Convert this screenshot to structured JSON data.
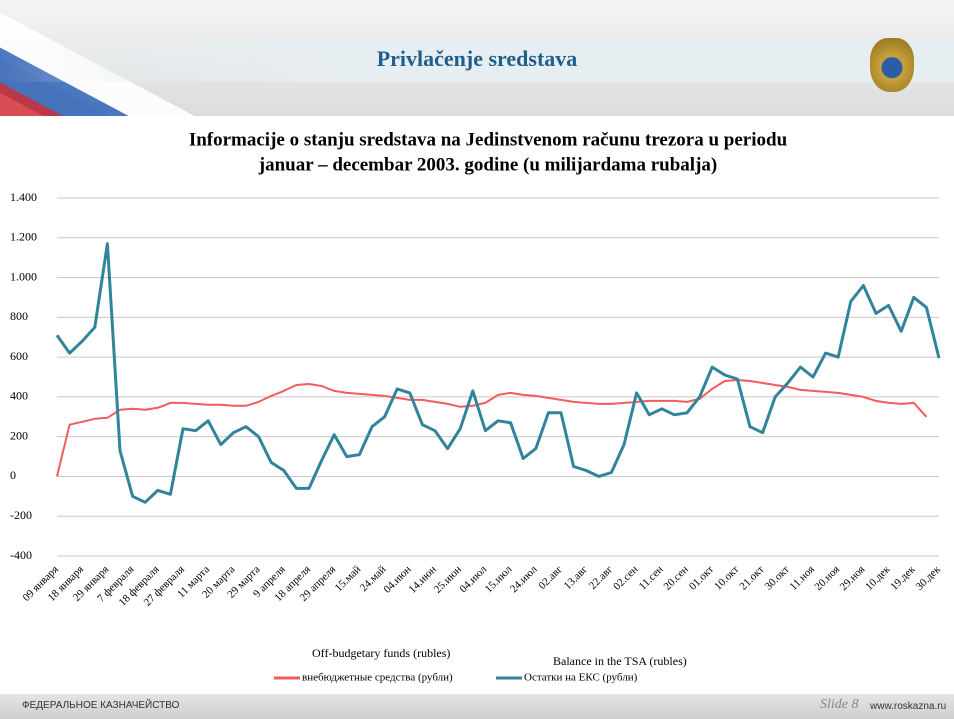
{
  "slide": {
    "title": "Privlačenje sredstava",
    "footer_left": "ФЕДЕРАЛЬНОЕ КАЗНАЧЕЙСТВО",
    "footer_slide": "Slide 8",
    "footer_site": "www.roskazna.ru"
  },
  "chart_data": {
    "type": "line",
    "title": [
      "Informacije o stanju sredstava na Jedinstvenom računu trezora u periodu",
      "januar – decembar 2003. godine (u milijardama rubalja)"
    ],
    "annotations": [
      "Off-budgetary funds (rubles)",
      "Balance in the TSA (rubles)"
    ],
    "categories": [
      "09 января",
      null,
      "18 января",
      null,
      "29 января",
      null,
      "7 февраля",
      null,
      "18 февраля",
      null,
      "27 февраля",
      null,
      "11 марта",
      null,
      "20 марта",
      null,
      "29 марта",
      null,
      "9 апреля",
      null,
      "18 апреля",
      null,
      "29 апреля",
      null,
      "15.май",
      null,
      "24.май",
      null,
      "04.июн",
      null,
      "14.июн",
      null,
      "25.июн",
      null,
      "04.июл",
      null,
      "15.июл",
      null,
      "24.июл",
      null,
      "02.авг",
      null,
      "13.авг",
      null,
      "22.авг",
      null,
      "02.сен",
      null,
      "11.сен",
      null,
      "20.сен",
      null,
      "01.окт",
      null,
      "10.окт",
      null,
      "21.окт",
      null,
      "30.окт",
      null,
      "11.ноя",
      null,
      "20.ноя",
      null,
      "29.ноя",
      null,
      "10.дек",
      null,
      "19.дек",
      null,
      "30.дек"
    ],
    "series": [
      {
        "name": "внебюджетные средства (рубли)",
        "color": "#f25c5c",
        "values": [
          0,
          260,
          275,
          290,
          295,
          335,
          340,
          335,
          345,
          370,
          370,
          365,
          360,
          360,
          355,
          355,
          375,
          405,
          430,
          460,
          465,
          455,
          430,
          420,
          415,
          410,
          405,
          395,
          385,
          385,
          375,
          365,
          350,
          355,
          370,
          410,
          420,
          410,
          405,
          395,
          385,
          375,
          370,
          365,
          365,
          370,
          375,
          380,
          380,
          380,
          375,
          390,
          440,
          480,
          485,
          480,
          470,
          460,
          450,
          435,
          430,
          425,
          420,
          410,
          400,
          380,
          370,
          365,
          370,
          300,
          null
        ]
      },
      {
        "name": "Остатки на ЕКС (рубли)",
        "color": "#31849b",
        "values": [
          710,
          620,
          680,
          750,
          1170,
          130,
          -100,
          -130,
          -70,
          -90,
          240,
          230,
          280,
          160,
          220,
          250,
          200,
          70,
          30,
          -60,
          -60,
          80,
          210,
          100,
          110,
          250,
          300,
          440,
          420,
          260,
          230,
          140,
          240,
          430,
          230,
          280,
          270,
          90,
          140,
          320,
          320,
          50,
          30,
          0,
          20,
          160,
          420,
          310,
          340,
          310,
          320,
          400,
          550,
          510,
          490,
          250,
          220,
          400,
          470,
          550,
          500,
          620,
          600,
          880,
          960,
          820,
          860,
          730,
          900,
          850,
          595
        ]
      }
    ],
    "ylim": [
      -400,
      1400
    ],
    "yticks": [
      -400,
      -200,
      0,
      200,
      400,
      600,
      800,
      {
        "value": 1000,
        "label": "1.000"
      },
      {
        "value": 1200,
        "label": "1.200"
      },
      {
        "value": 1400,
        "label": "1.400"
      }
    ],
    "grid": true
  }
}
